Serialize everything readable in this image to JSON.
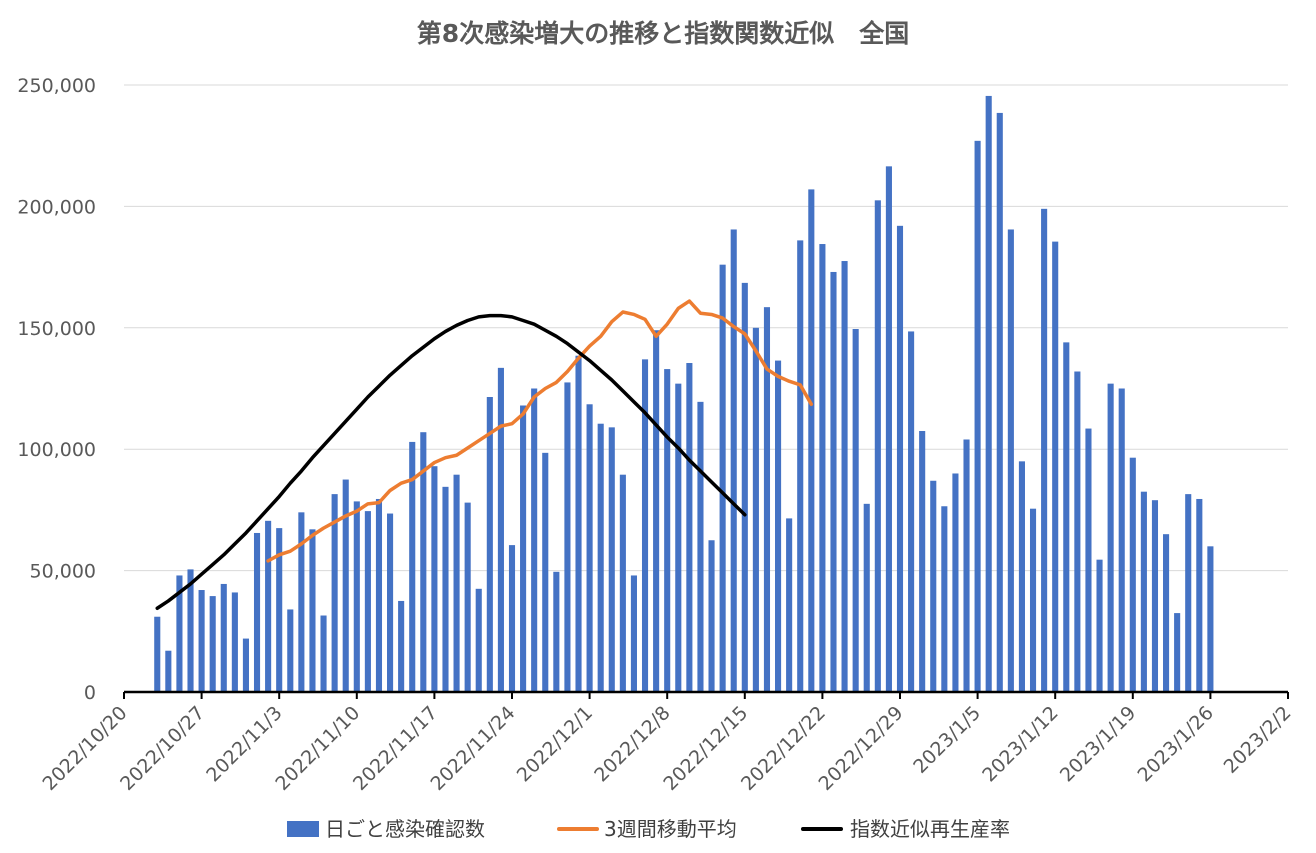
{
  "chart_data": {
    "type": "bar+line",
    "title": "第8次感染増大の推移と指数関数近似　全国",
    "xlabel": "",
    "ylabel": "",
    "x_range": [
      "2022-10-20",
      "2023-02-02"
    ],
    "ylim": [
      0,
      250000
    ],
    "y_ticks": [
      "0",
      "50,000",
      "100,000",
      "150,000",
      "200,000",
      "250,000"
    ],
    "y_tick_values": [
      0,
      50000,
      100000,
      150000,
      200000,
      250000
    ],
    "x_tick_labels": [
      "2022/10/20",
      "2022/10/27",
      "2022/11/3",
      "2022/11/10",
      "2022/11/17",
      "2022/11/24",
      "2022/12/1",
      "2022/12/8",
      "2022/12/15",
      "2022/12/22",
      "2022/12/29",
      "2023/1/5",
      "2023/1/12",
      "2023/1/19",
      "2023/1/26",
      "2023/2/2"
    ],
    "x_tick_dates": [
      "2022-10-20",
      "2022-10-27",
      "2022-11-03",
      "2022-11-10",
      "2022-11-17",
      "2022-11-24",
      "2022-12-01",
      "2022-12-08",
      "2022-12-15",
      "2022-12-22",
      "2022-12-29",
      "2023-01-05",
      "2023-01-12",
      "2023-01-19",
      "2023-01-26",
      "2023-02-02"
    ],
    "grid": "horizontal",
    "legend_position": "bottom",
    "series": [
      {
        "name": "日ごと感染確認数",
        "type": "bar",
        "color": "#4472C4",
        "start_date": "2022-10-23",
        "values": [
          31000,
          17000,
          48000,
          50500,
          42000,
          39500,
          44500,
          41000,
          22000,
          65500,
          70500,
          67500,
          34000,
          74000,
          67000,
          31500,
          81500,
          87500,
          78500,
          74500,
          79500,
          73500,
          37500,
          103000,
          107000,
          93000,
          84500,
          89500,
          78000,
          42500,
          121500,
          133500,
          60500,
          118000,
          125000,
          98500,
          49500,
          127500,
          138500,
          118500,
          110500,
          109000,
          89500,
          48000,
          137000,
          149000,
          133000,
          127000,
          135500,
          119500,
          62500,
          176000,
          190500,
          168500,
          150000,
          158500,
          136500,
          71500,
          186000,
          207000,
          184500,
          173000,
          177500,
          149500,
          77500,
          202500,
          216500,
          192000,
          148500,
          107500,
          87000,
          76500,
          90000,
          104000,
          227000,
          245500,
          238500,
          190500,
          95000,
          75500,
          199000,
          185500,
          144000,
          132000,
          108500,
          54500,
          127000,
          125000,
          96500,
          82500,
          79000,
          65000,
          32500,
          81500,
          79500,
          60000
        ]
      },
      {
        "name": "3週間移動平均",
        "type": "line",
        "color": "#ED7D31",
        "start_date": "2022-11-02",
        "values": [
          54000,
          56500,
          58000,
          61000,
          64500,
          67500,
          70000,
          72500,
          74500,
          77500,
          78000,
          83000,
          86000,
          87500,
          91000,
          94500,
          96500,
          97500,
          100500,
          103500,
          106500,
          109500,
          110500,
          114500,
          121500,
          125000,
          127500,
          132000,
          137500,
          142500,
          146500,
          152500,
          156500,
          155500,
          153500,
          146500,
          151500,
          158000,
          161000,
          156000,
          155500,
          154000,
          150500,
          147500,
          140500,
          133000,
          130000,
          128000,
          126500,
          118500
        ]
      },
      {
        "name": "指数近似再生産率",
        "type": "line",
        "color": "#000000",
        "start_date": "2022-10-23",
        "values": [
          34500,
          37500,
          41000,
          44500,
          48500,
          52500,
          56500,
          61000,
          65500,
          70500,
          75500,
          80500,
          86000,
          91000,
          96500,
          101500,
          106500,
          111500,
          116500,
          121500,
          126000,
          130500,
          134500,
          138500,
          142000,
          145500,
          148500,
          151000,
          153000,
          154500,
          155000,
          155000,
          154500,
          153000,
          151500,
          149000,
          146500,
          143500,
          140000,
          136500,
          132500,
          128500,
          124000,
          119500,
          115000,
          110000,
          105000,
          100500,
          95500,
          91000,
          86500,
          82000,
          77500,
          73000
        ]
      }
    ]
  }
}
